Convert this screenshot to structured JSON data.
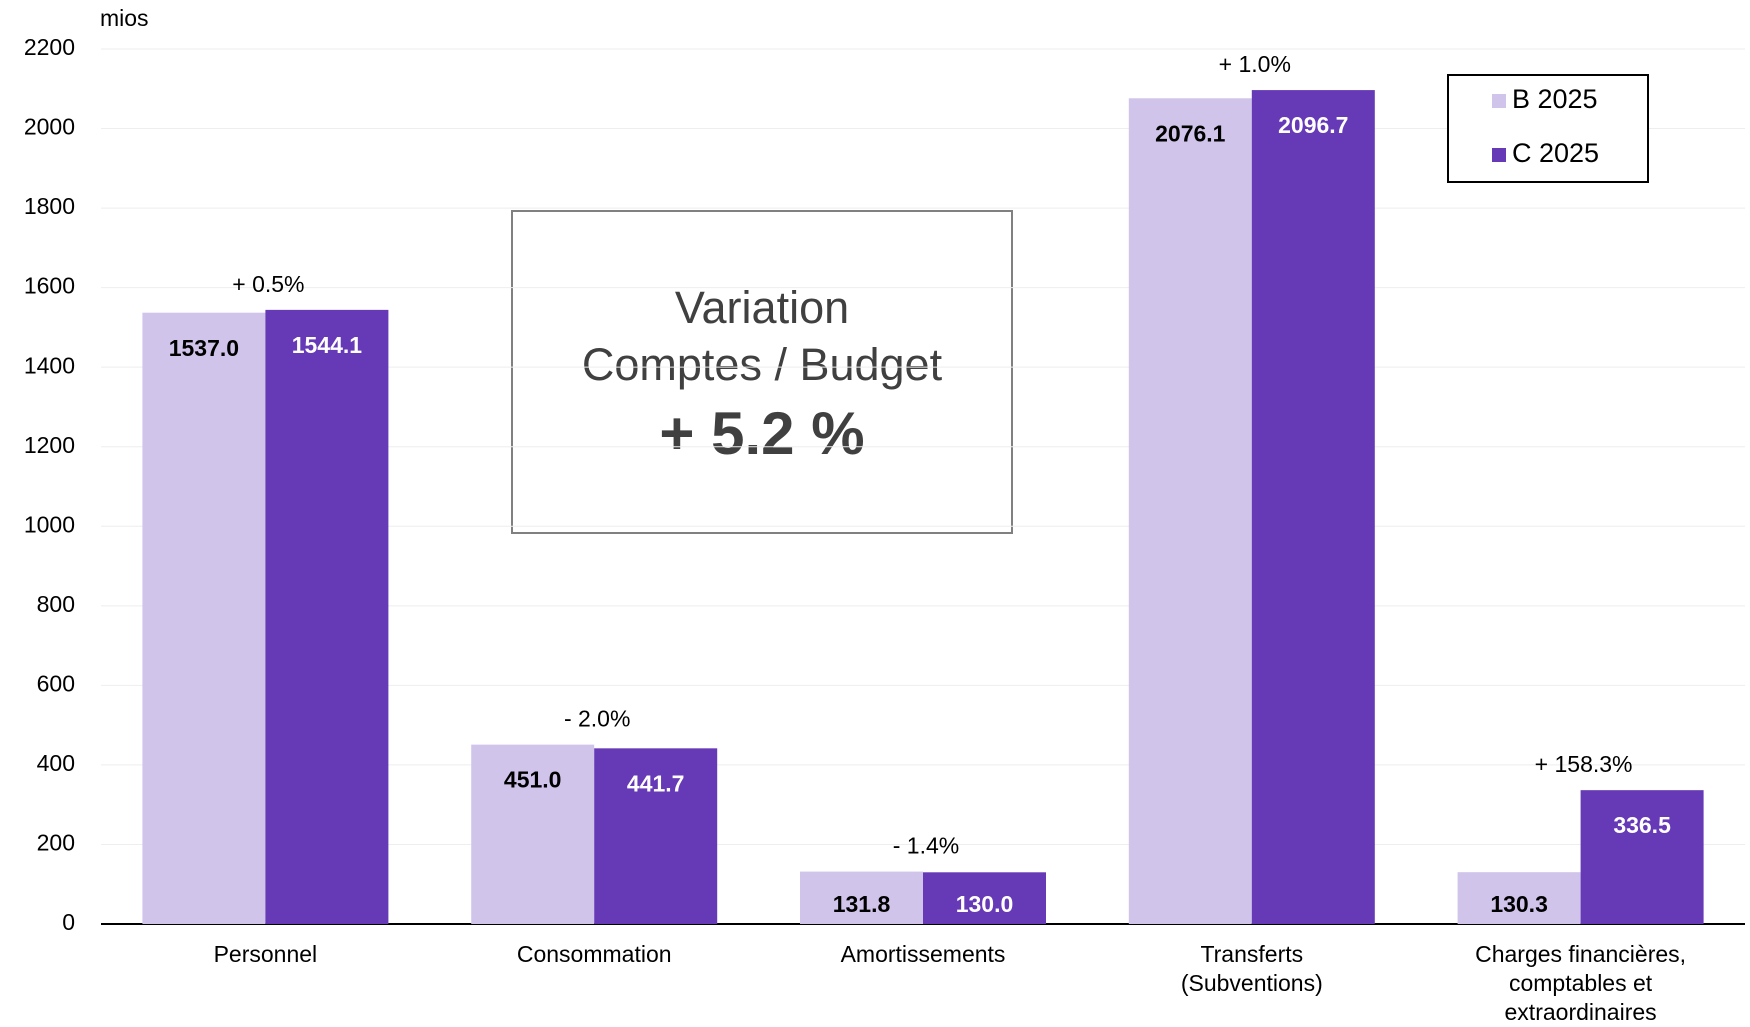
{
  "chart_data": {
    "type": "bar",
    "y_unit": "mios",
    "categories": [
      "Personnel",
      "Consommation",
      "Amortissements",
      "Transferts\n(Subventions)",
      "Charges financières,\ncomptables et\nextraordinaires"
    ],
    "series": [
      {
        "name": "B 2025",
        "color": "#d1c4eb",
        "values": [
          1537.0,
          451.0,
          131.8,
          2076.1,
          130.3
        ],
        "value_labels": [
          "1537.0",
          "451.0",
          "131.8",
          "2076.1",
          "130.3"
        ]
      },
      {
        "name": "C 2025",
        "color": "#6639b7",
        "values": [
          1544.1,
          441.7,
          130.0,
          2096.7,
          336.5
        ],
        "value_labels": [
          "1544.1",
          "441.7",
          "130.0",
          "2096.7",
          "336.5"
        ]
      }
    ],
    "annotations": [
      "+ 0.5%",
      "- 2.0%",
      "- 1.4%",
      "+ 1.0%",
      "+ 158.3%"
    ],
    "summary_box": [
      "Variation",
      "Comptes / Budget",
      "+ 5.2 %"
    ],
    "ylim": [
      0,
      2200
    ],
    "yticks": [
      0,
      200,
      400,
      600,
      800,
      1000,
      1200,
      1400,
      1600,
      1800,
      2000,
      2200
    ],
    "grid": true,
    "legend": "top-right"
  }
}
